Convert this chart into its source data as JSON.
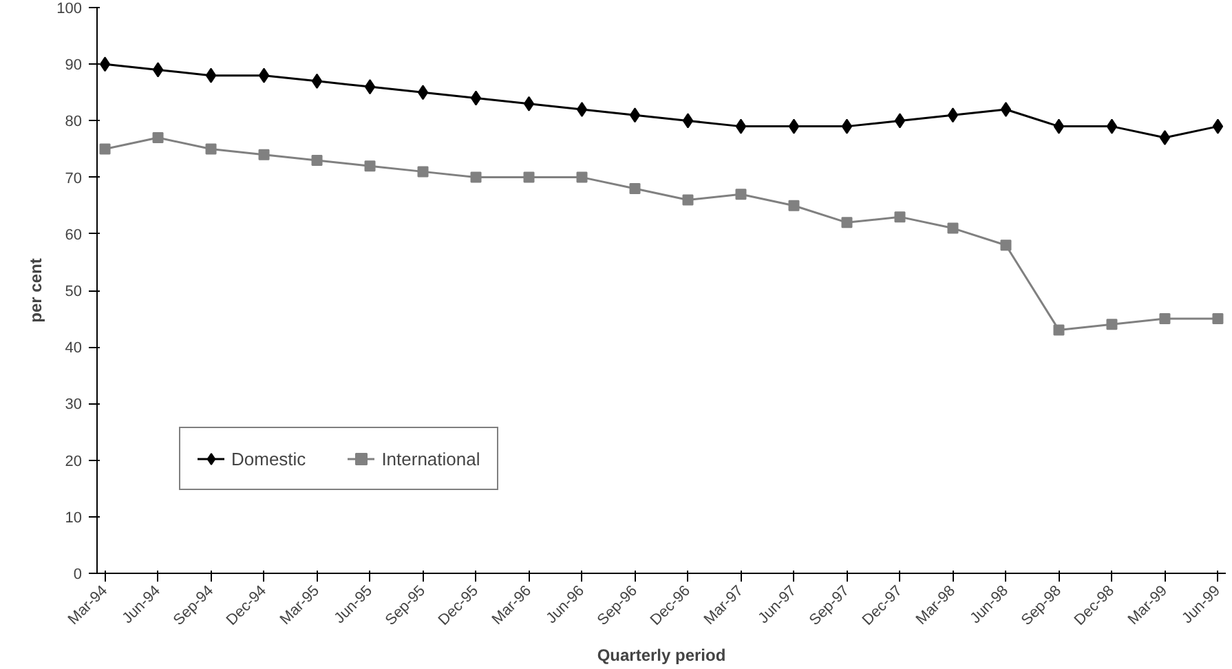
{
  "chart_data": {
    "type": "line",
    "xlabel": "Quarterly period",
    "ylabel": "per cent",
    "categories": [
      "Mar-94",
      "Jun-94",
      "Sep-94",
      "Dec-94",
      "Mar-95",
      "Jun-95",
      "Sep-95",
      "Dec-95",
      "Mar-96",
      "Jun-96",
      "Sep-96",
      "Dec-96",
      "Mar-97",
      "Jun-97",
      "Sep-97",
      "Dec-97",
      "Mar-98",
      "Jun-98",
      "Sep-98",
      "Dec-98",
      "Mar-99",
      "Jun-99"
    ],
    "series": [
      {
        "name": "Domestic",
        "color": "#000000",
        "marker": "diamond",
        "values": [
          90,
          89,
          88,
          88,
          87,
          86,
          85,
          84,
          83,
          82,
          81,
          80,
          79,
          79,
          79,
          80,
          81,
          82,
          79,
          79,
          77,
          79
        ]
      },
      {
        "name": "International",
        "color": "#808080",
        "marker": "square",
        "values": [
          75,
          77,
          75,
          74,
          73,
          72,
          71,
          70,
          70,
          70,
          68,
          66,
          67,
          65,
          62,
          63,
          61,
          58,
          43,
          44,
          45,
          45
        ]
      }
    ],
    "ylim": [
      0,
      100
    ],
    "yticks": [
      0,
      10,
      20,
      30,
      40,
      50,
      60,
      70,
      80,
      90,
      100
    ],
    "grid": false,
    "legend": "bottom left"
  }
}
